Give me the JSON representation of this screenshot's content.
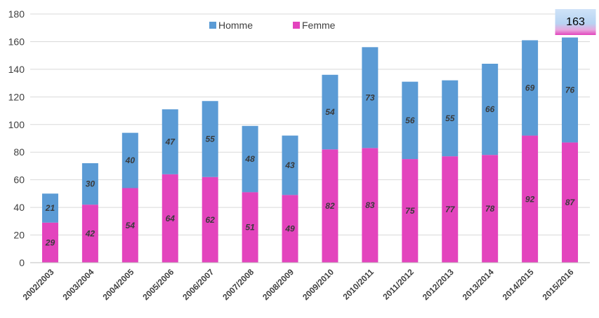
{
  "chart_data": {
    "type": "bar",
    "stacked": true,
    "categories": [
      "2002/2003",
      "2003/2004",
      "2004/2005",
      "2005/2006",
      "2006/2007",
      "2007/2008",
      "2008/2009",
      "2009/2010",
      "2010/2011",
      "2011/2012",
      "2012/2013",
      "2013/2014",
      "2014/2015",
      "2015/2016"
    ],
    "series": [
      {
        "name": "Femme",
        "color": "#e344bd",
        "values": [
          29,
          42,
          54,
          64,
          62,
          51,
          49,
          82,
          83,
          75,
          77,
          78,
          92,
          87
        ]
      },
      {
        "name": "Homme",
        "color": "#5b9bd5",
        "values": [
          21,
          30,
          40,
          47,
          55,
          48,
          43,
          54,
          73,
          56,
          55,
          66,
          69,
          76
        ]
      }
    ],
    "legend_order": [
      "Homme",
      "Femme"
    ],
    "legend_position": "top",
    "ylim": [
      0,
      180
    ],
    "yticks": [
      0,
      20,
      40,
      60,
      80,
      100,
      120,
      140,
      160,
      180
    ],
    "grid": true,
    "title": "",
    "xlabel": "",
    "ylabel": "",
    "annotation": {
      "text": "163",
      "category": "2015/2016"
    }
  }
}
